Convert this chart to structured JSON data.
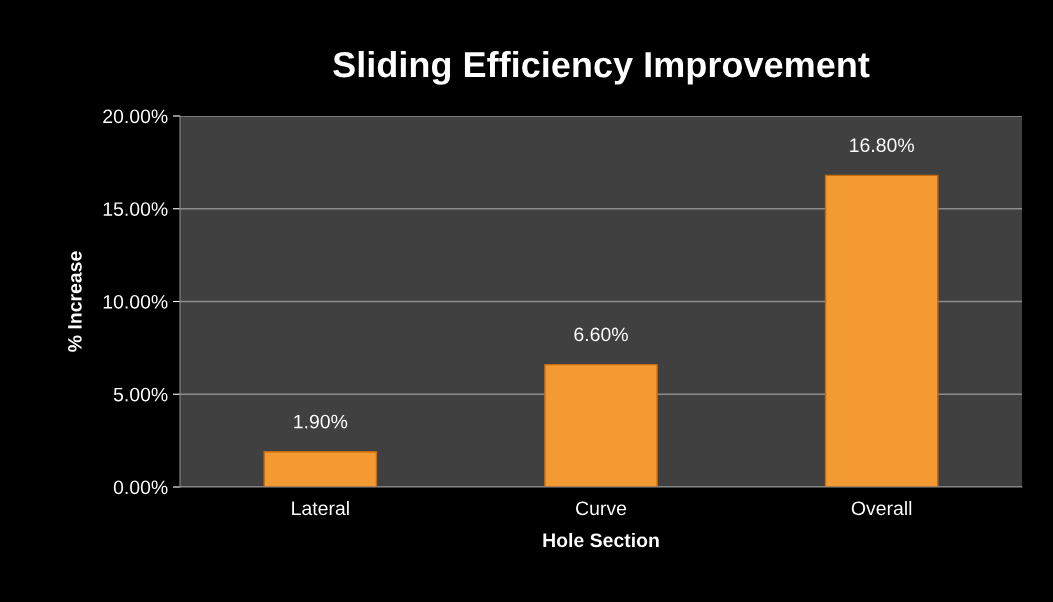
{
  "chart_data": {
    "type": "bar",
    "title": "Sliding Efficiency Improvement",
    "xlabel": "Hole Section",
    "ylabel": "% Increase",
    "categories": [
      "Lateral",
      "Curve",
      "Overall"
    ],
    "values": [
      1.9,
      6.6,
      16.8
    ],
    "value_labels": [
      "1.90%",
      "6.60%",
      "16.80%"
    ],
    "color": "#f39a33",
    "ylim": [
      0,
      20
    ],
    "yticks": [
      {
        "value": 0,
        "label": "0.00%"
      },
      {
        "value": 5,
        "label": "5.00%"
      },
      {
        "value": 10,
        "label": "10.00%"
      },
      {
        "value": 15,
        "label": "15.00%"
      },
      {
        "value": 20,
        "label": "20.00%"
      }
    ],
    "grid": "y"
  }
}
